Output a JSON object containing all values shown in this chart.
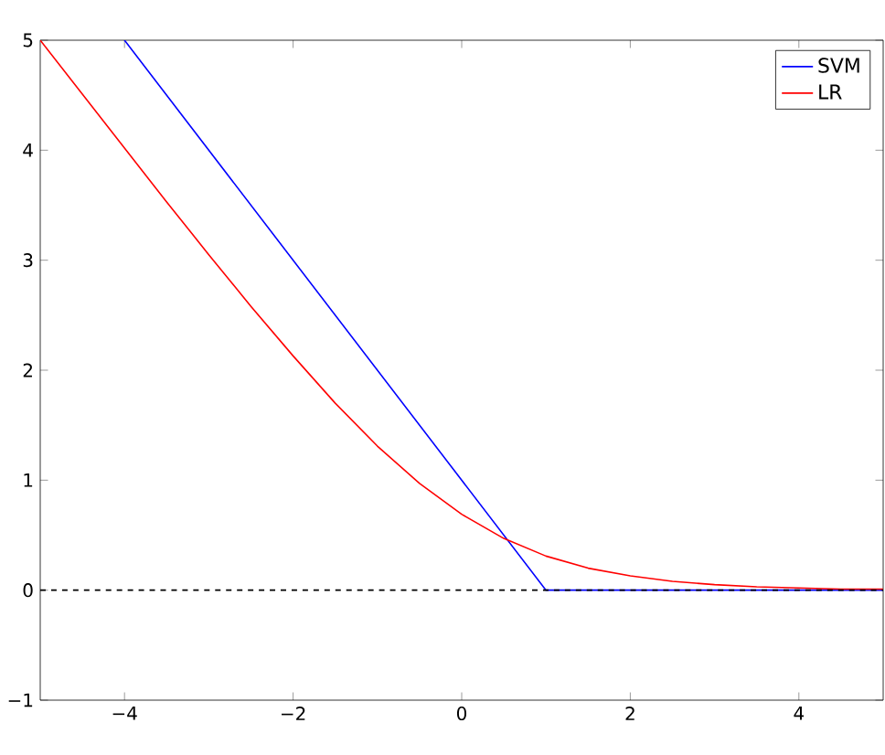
{
  "chart_data": {
    "type": "line",
    "xlim": [
      -5,
      5
    ],
    "ylim": [
      -1,
      5
    ],
    "xticks": [
      {
        "value": -4,
        "label": "−4"
      },
      {
        "value": -2,
        "label": "−2"
      },
      0,
      2,
      4
    ],
    "yticks": [
      {
        "value": -1,
        "label": "−1"
      },
      0,
      1,
      2,
      3,
      4,
      5
    ],
    "legend": "top right",
    "grid": false,
    "marker": "none",
    "line_style": "solid",
    "series": [
      {
        "name": "SVM",
        "color": "#0000ff",
        "x": [
          -4,
          1,
          5
        ],
        "values": [
          5,
          0,
          0
        ]
      },
      {
        "name": "LR",
        "color": "#ff0000",
        "x": [
          -5,
          -4.5,
          -4,
          -3.5,
          -3,
          -2.5,
          -2,
          -1.5,
          -1,
          -0.5,
          0,
          0.5,
          1,
          1.5,
          2,
          2.5,
          3,
          3.5,
          4,
          4.5,
          5
        ],
        "values": [
          5,
          4.51,
          4.02,
          3.53,
          3.05,
          2.58,
          2.13,
          1.7,
          1.31,
          0.97,
          0.69,
          0.47,
          0.31,
          0.2,
          0.13,
          0.08,
          0.05,
          0.03,
          0.02,
          0.01,
          0.01
        ]
      }
    ],
    "ref_lines": [
      {
        "axis": "y",
        "value": 0,
        "color": "#000000",
        "line_style": "dashed"
      }
    ]
  }
}
